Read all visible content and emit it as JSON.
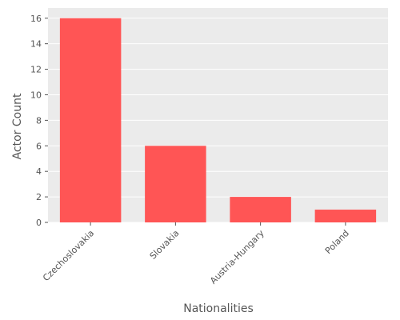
{
  "chart_data": {
    "type": "bar",
    "categories": [
      "Czechoslovakia",
      "Slovakia",
      "Austria-Hungary",
      "Poland"
    ],
    "values": [
      16,
      6,
      2,
      1
    ],
    "title": "",
    "xlabel": "Nationalities",
    "ylabel": "Actor Count",
    "ylim": [
      0,
      16.8
    ],
    "yticks": [
      0,
      2,
      4,
      6,
      8,
      10,
      12,
      14,
      16
    ],
    "grid": true,
    "bar_color": "#ff5555",
    "background_color": "#ebebeb",
    "grid_color": "#ffffff"
  }
}
